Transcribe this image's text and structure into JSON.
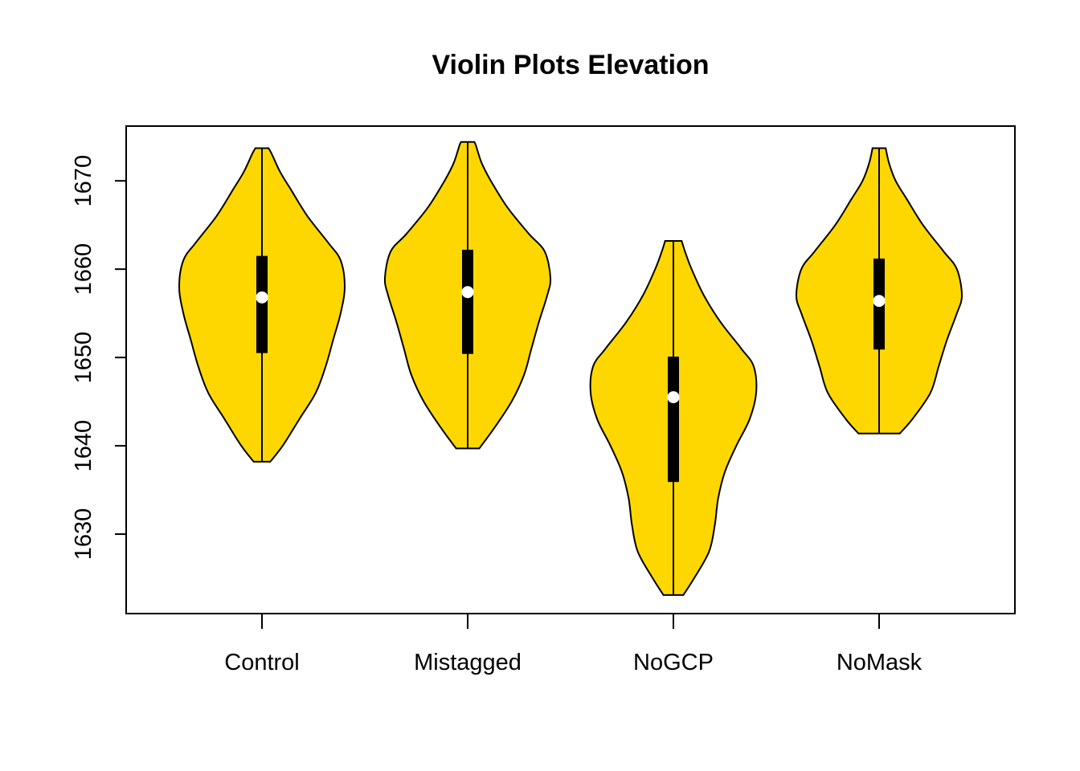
{
  "chart_data": {
    "type": "violin",
    "title": "Violin Plots Elevation",
    "xlabel": "",
    "ylabel": "",
    "categories": [
      "Control",
      "Mistagged",
      "NoGCP",
      "NoMask"
    ],
    "yticks": [
      "1630",
      "1640",
      "1650",
      "1660",
      "1670"
    ],
    "ylim": [
      1621,
      1676.2
    ],
    "fill_color": "#FFD700",
    "grid": false,
    "violins": [
      {
        "name": "Control",
        "min": 1638.2,
        "max": 1673.7,
        "q1": 1650.5,
        "median": 1656.8,
        "q3": 1661.5,
        "profile": [
          [
            1638.2,
            0.1
          ],
          [
            1640,
            0.25
          ],
          [
            1643,
            0.45
          ],
          [
            1646,
            0.65
          ],
          [
            1649,
            0.77
          ],
          [
            1652,
            0.86
          ],
          [
            1655,
            0.95
          ],
          [
            1658,
            1.0
          ],
          [
            1661,
            0.95
          ],
          [
            1663,
            0.8
          ],
          [
            1666,
            0.55
          ],
          [
            1669,
            0.35
          ],
          [
            1671,
            0.22
          ],
          [
            1673,
            0.12
          ],
          [
            1673.7,
            0.08
          ]
        ]
      },
      {
        "name": "Mistagged",
        "min": 1639.7,
        "max": 1674.4,
        "q1": 1650.4,
        "median": 1657.4,
        "q3": 1662.2,
        "profile": [
          [
            1639.7,
            0.14
          ],
          [
            1642,
            0.32
          ],
          [
            1645,
            0.53
          ],
          [
            1648,
            0.68
          ],
          [
            1651,
            0.77
          ],
          [
            1654,
            0.86
          ],
          [
            1657,
            0.96
          ],
          [
            1659,
            1.0
          ],
          [
            1662,
            0.93
          ],
          [
            1664,
            0.74
          ],
          [
            1667,
            0.48
          ],
          [
            1670,
            0.28
          ],
          [
            1672,
            0.17
          ],
          [
            1674,
            0.1
          ],
          [
            1674.4,
            0.08
          ]
        ]
      },
      {
        "name": "NoGCP",
        "min": 1623.1,
        "max": 1663.2,
        "q1": 1635.9,
        "median": 1645.5,
        "q3": 1650.1,
        "profile": [
          [
            1623.1,
            0.12
          ],
          [
            1625,
            0.25
          ],
          [
            1628,
            0.43
          ],
          [
            1631,
            0.5
          ],
          [
            1634,
            0.54
          ],
          [
            1637,
            0.62
          ],
          [
            1640,
            0.76
          ],
          [
            1643,
            0.92
          ],
          [
            1646,
            1.0
          ],
          [
            1649,
            0.97
          ],
          [
            1651,
            0.82
          ],
          [
            1654,
            0.57
          ],
          [
            1657,
            0.37
          ],
          [
            1660,
            0.22
          ],
          [
            1662,
            0.14
          ],
          [
            1663.2,
            0.1
          ]
        ]
      },
      {
        "name": "NoMask",
        "min": 1641.4,
        "max": 1673.7,
        "q1": 1650.9,
        "median": 1656.4,
        "q3": 1661.2,
        "profile": [
          [
            1641.4,
            0.25
          ],
          [
            1643,
            0.4
          ],
          [
            1646,
            0.62
          ],
          [
            1649,
            0.72
          ],
          [
            1652,
            0.82
          ],
          [
            1655,
            0.94
          ],
          [
            1657,
            1.0
          ],
          [
            1660,
            0.94
          ],
          [
            1662,
            0.78
          ],
          [
            1665,
            0.53
          ],
          [
            1668,
            0.33
          ],
          [
            1670,
            0.2
          ],
          [
            1672,
            0.12
          ],
          [
            1673.7,
            0.08
          ]
        ]
      }
    ]
  }
}
